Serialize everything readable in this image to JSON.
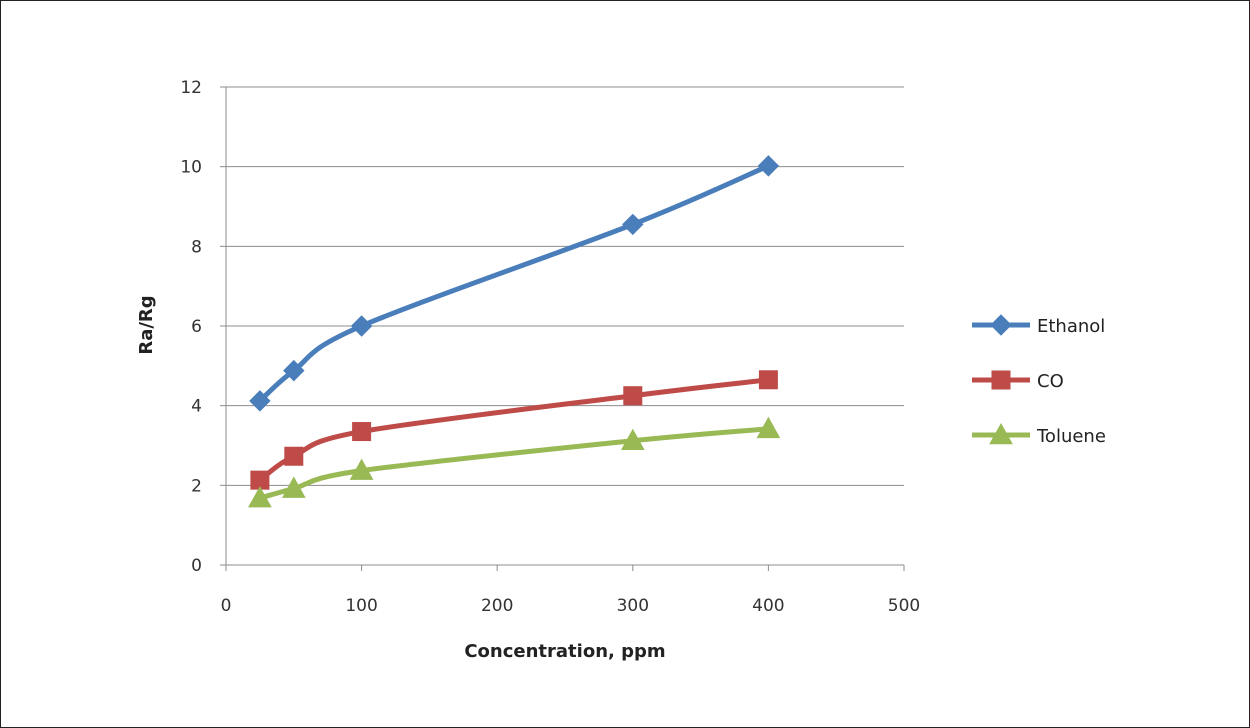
{
  "chart_data": {
    "type": "line",
    "title": "",
    "xlabel": "Concentration, ppm",
    "ylabel": "Ra/Rg",
    "xlim": [
      0,
      500
    ],
    "ylim": [
      0,
      12
    ],
    "xticks": [
      0,
      100,
      200,
      300,
      400,
      500
    ],
    "yticks": [
      0,
      2,
      4,
      6,
      8,
      10,
      12
    ],
    "grid": "horizontal",
    "legend_position": "right",
    "smooth": true,
    "series": [
      {
        "name": "Ethanol",
        "color": "#4a7ebb",
        "marker": "diamond",
        "x": [
          25,
          50,
          100,
          300,
          400
        ],
        "y": [
          4.12,
          4.88,
          6.0,
          8.55,
          10.02
        ]
      },
      {
        "name": "CO",
        "color": "#be4b48",
        "marker": "square",
        "x": [
          25,
          50,
          100,
          300,
          400
        ],
        "y": [
          2.13,
          2.73,
          3.35,
          4.25,
          4.65
        ]
      },
      {
        "name": "Toluene",
        "color": "#98b954",
        "marker": "triangle",
        "x": [
          25,
          50,
          100,
          300,
          400
        ],
        "y": [
          1.68,
          1.92,
          2.37,
          3.12,
          3.42
        ]
      }
    ]
  }
}
